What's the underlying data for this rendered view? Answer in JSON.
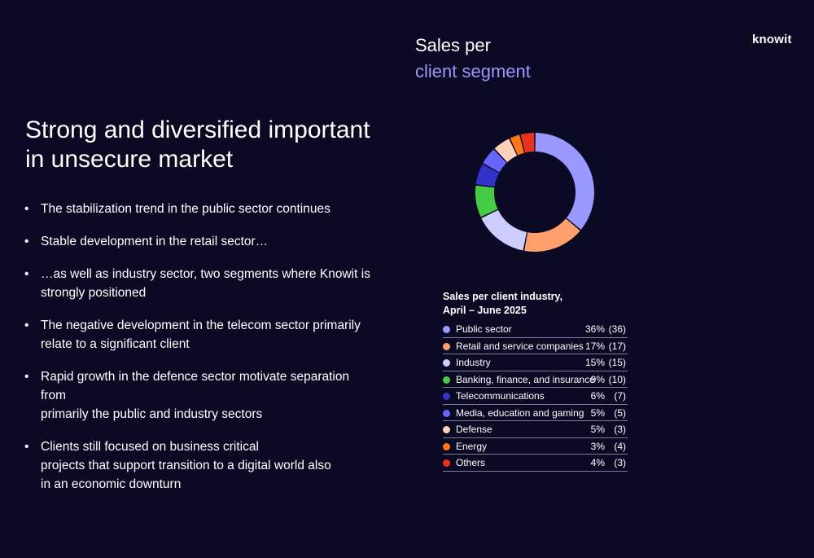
{
  "header": {
    "logo_text": "knowit",
    "chart_title_line1": "Sales per",
    "chart_title_line2": "client segment"
  },
  "left": {
    "headline_line1": "Strong and diversified important",
    "headline_line2": "in unsecure market",
    "bullet_symbol": "•",
    "bullets": [
      "The stabilization trend in the public sector continues",
      "Stable development in the retail sector…",
      "…as well as industry sector, two segments where Knowit is\nstrongly positioned",
      "The negative development in the telecom sector primarily\nrelate to a significant client",
      "Rapid growth in the defence sector motivate separation from\nprimarily the public and industry sectors",
      "Clients still focused on business critical\nprojects that support transition to a digital world also\nin an economic downturn"
    ]
  },
  "chart_data": {
    "type": "pie",
    "title": "Sales per client industry,",
    "subtitle": "April – June 2025",
    "categories": [
      "Public sector",
      "Retail and service companies",
      "Industry",
      "Banking, finance, and insurance",
      "Telecommunications",
      "Media, education and gaming",
      "Defense",
      "Energy",
      "Others"
    ],
    "values": [
      36,
      17,
      15,
      9,
      6,
      5,
      5,
      3,
      4
    ],
    "value_labels": [
      "36%",
      "17%",
      "15%",
      "9%",
      "6%",
      "5%",
      "5%",
      "3%",
      "4%"
    ],
    "previous_labels": [
      "(36)",
      "(17)",
      "(15)",
      "(10)",
      "(7)",
      "(5)",
      "(3)",
      "(4)",
      "(3)"
    ],
    "colors": [
      "#9999ff",
      "#ff9f6b",
      "#ccccff",
      "#44cc44",
      "#3333cc",
      "#6666ff",
      "#ffd2b8",
      "#ff7711",
      "#e8321c"
    ],
    "donut": true,
    "legend": "bottom"
  }
}
